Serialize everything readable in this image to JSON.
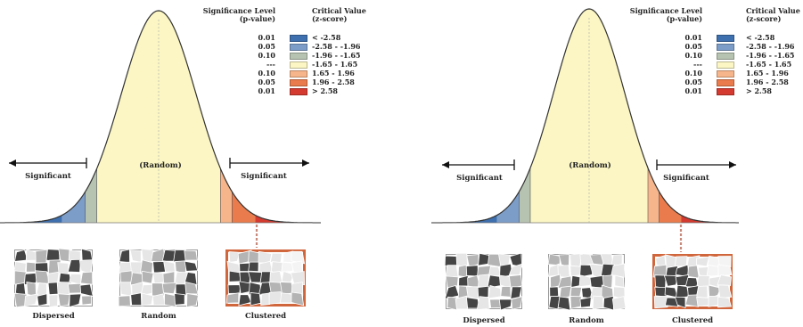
{
  "panels": [
    {
      "legend": {
        "sig_header": "Significance Level",
        "sig_sub": "(p-value)",
        "crit_header": "Critical Value",
        "crit_sub": "(z-score)",
        "rows": [
          {
            "p": "0.01",
            "z": "< -2.58",
            "color": "#3e6fae"
          },
          {
            "p": "0.05",
            "z": "-2.58 - -1.96",
            "color": "#7c9dc8"
          },
          {
            "p": "0.10",
            "z": "-1.96 - -1.65",
            "color": "#b7c3b1"
          },
          {
            "p": "---",
            "z": "-1.65 - 1.65",
            "color": "#fbf6c3"
          },
          {
            "p": "0.10",
            "z": "1.65 - 1.96",
            "color": "#f6b58a"
          },
          {
            "p": "0.05",
            "z": "1.96 - 2.58",
            "color": "#ea7b4c"
          },
          {
            "p": "0.01",
            "z": "> 2.58",
            "color": "#d43a30"
          }
        ]
      },
      "curve": {
        "left_label": "Significant",
        "center_label": "(Random)",
        "right_label": "Significant"
      },
      "thumbnails": [
        {
          "label": "Dispersed",
          "highlighted": false
        },
        {
          "label": "Random",
          "highlighted": false
        },
        {
          "label": "Clustered",
          "highlighted": true
        }
      ]
    },
    {
      "legend": {
        "sig_header": "Significance Level",
        "sig_sub": "(p-value)",
        "crit_header": "Critical Value",
        "crit_sub": "(z-score)",
        "rows": [
          {
            "p": "0.01",
            "z": "< -2.58",
            "color": "#3e6fae"
          },
          {
            "p": "0.05",
            "z": "-2.58 - -1.96",
            "color": "#7c9dc8"
          },
          {
            "p": "0.10",
            "z": "-1.96 - -1.65",
            "color": "#b7c3b1"
          },
          {
            "p": "---",
            "z": "-1.65 - 1.65",
            "color": "#fbf6c3"
          },
          {
            "p": "0.10",
            "z": "1.65 - 1.96",
            "color": "#f6b58a"
          },
          {
            "p": "0.05",
            "z": "1.96 - 2.58",
            "color": "#ea7b4c"
          },
          {
            "p": "0.01",
            "z": "> 2.58",
            "color": "#d43a30"
          }
        ]
      },
      "curve": {
        "left_label": "Significant",
        "center_label": "(Random)",
        "right_label": "Significant"
      },
      "thumbnails": [
        {
          "label": "Dispersed",
          "highlighted": false
        },
        {
          "label": "Random",
          "highlighted": false
        },
        {
          "label": "Clustered",
          "highlighted": true
        }
      ]
    }
  ],
  "colors": {
    "curve_fill": "#fbf6c3",
    "curve_stroke": "#333333",
    "highlight_border": "#d0663c",
    "map_light": "#e6e6e6",
    "map_mid": "#b4b4b4",
    "map_dark": "#454545"
  }
}
